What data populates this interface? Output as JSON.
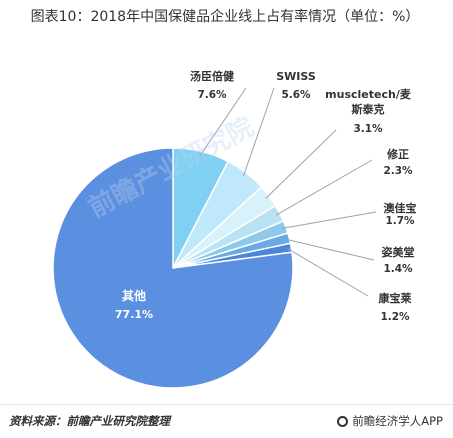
{
  "title": "图表10：2018年中国保健品企业线上占有率情况（单位：%）",
  "source": "资料来源：前瞻产业研究院整理",
  "brand": "前瞻经济学人APP",
  "watermark": "前瞻产业研究院",
  "chart_data": {
    "type": "pie",
    "title": "图表10：2018年中国保健品企业线上占有率情况（单位：%）",
    "unit": "%",
    "slices": [
      {
        "label": "汤臣倍健",
        "value": 7.6,
        "display": "7.6%",
        "color": "#7fd0f3"
      },
      {
        "label": "SWISS",
        "value": 5.6,
        "display": "5.6%",
        "color": "#bfe9fa"
      },
      {
        "label": "muscletech/麦斯泰克",
        "value": 3.1,
        "display": "3.1%",
        "color": "#d8f2fb"
      },
      {
        "label": "修正",
        "value": 2.3,
        "display": "2.3%",
        "color": "#b9e2f4"
      },
      {
        "label": "澳佳宝",
        "value": 1.7,
        "display": "1.7%",
        "color": "#8fc9ea"
      },
      {
        "label": "姿美堂",
        "value": 1.4,
        "display": "1.4%",
        "color": "#6aa9e3"
      },
      {
        "label": "康宝莱",
        "value": 1.2,
        "display": "1.2%",
        "color": "#4a86d6"
      },
      {
        "label": "其他",
        "value": 77.1,
        "display": "77.1%",
        "color": "#5b8fe0"
      }
    ]
  }
}
